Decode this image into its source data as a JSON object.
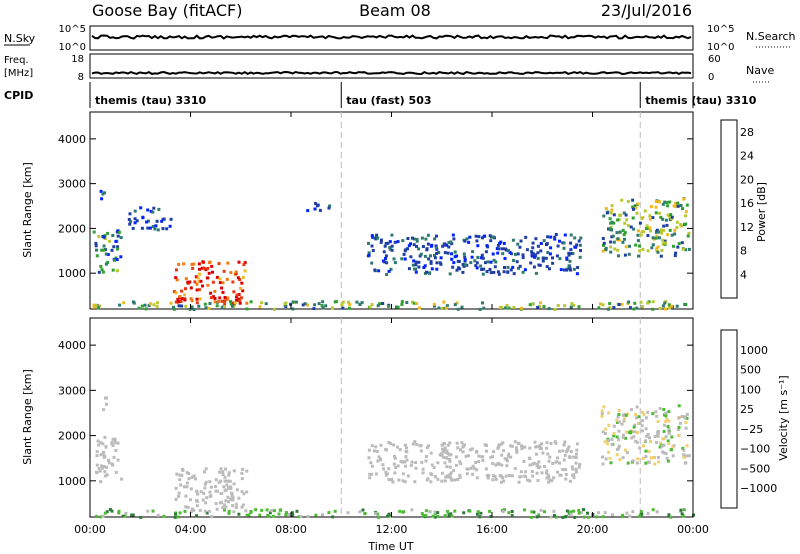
{
  "header": {
    "station": "Goose Bay (fitACF)",
    "beam": "Beam 08",
    "date": "23/Jul/2016"
  },
  "strips": {
    "nsky": {
      "label": "N.Sky",
      "left_ticks": [
        "10^5",
        "10^0"
      ],
      "right_label": "N.Search",
      "right_ticks": [
        "10^5",
        "10^0"
      ]
    },
    "freq": {
      "label_line1": "Freq.",
      "label_line2": "[MHz]",
      "left_ticks": [
        "18",
        "8"
      ],
      "right_label": "Nave",
      "right_ticks": [
        "60",
        "0"
      ]
    },
    "cpid": {
      "label": "CPID",
      "segments": [
        {
          "text": "themis (tau) 3310",
          "start_h": 0,
          "end_h": 10
        },
        {
          "text": "tau (fast) 503",
          "start_h": 10,
          "end_h": 21.9
        },
        {
          "text": "themis (tau) 3310",
          "start_h": 21.9,
          "end_h": 24
        }
      ]
    }
  },
  "colors": {
    "power": [
      "#0022ff",
      "#1f3fa6",
      "#2e7a6e",
      "#2fa02f",
      "#b8c830",
      "#f0b820",
      "#f07a10",
      "#e83a10",
      "#dd0000"
    ],
    "velocity": [
      "#dd0000",
      "#f05010",
      "#f0a020",
      "#f0d070",
      "#bbbbbb",
      "#4dbb33",
      "#2e7a3a",
      "#2a4aa8",
      "#1a1aee"
    ],
    "ground_scatter": "#bbbbbb",
    "dashed_line": "#bbbbbb"
  },
  "chart_data": [
    {
      "type": "heatmap",
      "quantity": "Power",
      "ylabel": "Slant Range [km]",
      "xlabel": "",
      "x_ticks": [
        "00:00",
        "04:00",
        "08:00",
        "12:00",
        "16:00",
        "20:00",
        "00:00"
      ],
      "y_ticks": [
        1000,
        2000,
        3000,
        4000
      ],
      "xlim_hours": [
        0,
        24
      ],
      "ylim_km": [
        200,
        4600
      ],
      "colorbar": {
        "label": "Power [dB]",
        "ticks": [
          "4",
          "8",
          "12",
          "16",
          "20",
          "24",
          "28"
        ],
        "range": [
          0,
          30
        ]
      },
      "mode_change_times_h": [
        10,
        21.9
      ],
      "regions": [
        {
          "t0": 0,
          "t1": 24,
          "r0": 220,
          "r1": 400,
          "level": 3,
          "spread": 2
        },
        {
          "t0": 3.3,
          "t1": 6.2,
          "r0": 350,
          "r1": 1300,
          "level": 7,
          "spread": 2
        },
        {
          "t0": 0.1,
          "t1": 1.2,
          "r0": 1000,
          "r1": 2000,
          "level": 2,
          "spread": 2
        },
        {
          "t0": 0.3,
          "t1": 0.6,
          "r0": 2600,
          "r1": 2900,
          "level": 1,
          "spread": 1
        },
        {
          "t0": 1.5,
          "t1": 3.2,
          "r0": 2000,
          "r1": 2500,
          "level": 1,
          "spread": 1
        },
        {
          "t0": 11.0,
          "t1": 19.5,
          "r0": 1000,
          "r1": 1900,
          "level": 1,
          "spread": 1
        },
        {
          "t0": 20.3,
          "t1": 23.8,
          "r0": 1400,
          "r1": 2700,
          "level": 3,
          "spread": 2
        },
        {
          "t0": 8.5,
          "t1": 9.5,
          "r0": 2400,
          "r1": 2600,
          "level": 1,
          "spread": 1
        }
      ]
    },
    {
      "type": "heatmap",
      "quantity": "Velocity",
      "ylabel": "Slant Range [km]",
      "xlabel": "Time UT",
      "x_ticks": [
        "00:00",
        "04:00",
        "08:00",
        "12:00",
        "16:00",
        "20:00",
        "00:00"
      ],
      "y_ticks": [
        1000,
        2000,
        3000,
        4000
      ],
      "xlim_hours": [
        0,
        24
      ],
      "ylim_km": [
        200,
        4600
      ],
      "colorbar": {
        "label": "Velocity [m s⁻¹]",
        "ticks": [
          "1000",
          "500",
          "100",
          "25",
          "−25",
          "−100",
          "−500",
          "−1000"
        ]
      },
      "mode_change_times_h": [
        10,
        21.9
      ],
      "regions": [
        {
          "t0": 0,
          "t1": 24,
          "r0": 220,
          "r1": 400,
          "level": 5,
          "spread": 1
        },
        {
          "t0": 3.3,
          "t1": 6.2,
          "r0": 350,
          "r1": 1300,
          "level": 4,
          "spread": 0
        },
        {
          "t0": 0.1,
          "t1": 1.2,
          "r0": 1000,
          "r1": 2000,
          "level": 4,
          "spread": 0
        },
        {
          "t0": 11.0,
          "t1": 19.5,
          "r0": 1000,
          "r1": 1900,
          "level": 4,
          "spread": 0
        },
        {
          "t0": 20.3,
          "t1": 23.8,
          "r0": 1400,
          "r1": 2700,
          "level": 4,
          "spread": 1
        },
        {
          "t0": 0.3,
          "t1": 0.6,
          "r0": 2600,
          "r1": 2900,
          "level": 4,
          "spread": 0
        }
      ]
    }
  ]
}
